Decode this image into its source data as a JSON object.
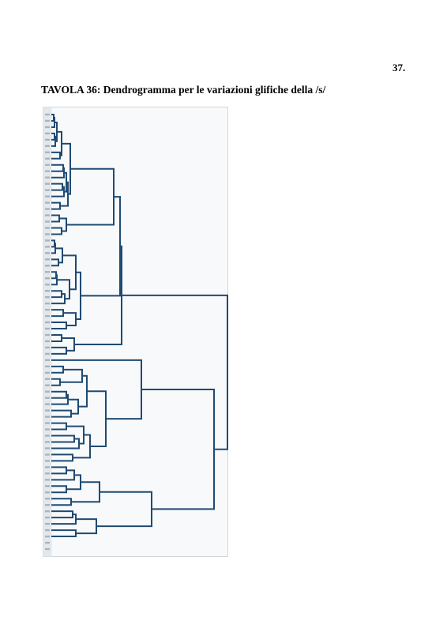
{
  "page_number": "37.",
  "title": "TAVOLA 36: Dendrogramma per le variazioni glifiche della /s/",
  "colors": {
    "line": "#1f4a72",
    "panel_bg": "#f8f9fa",
    "panel_border": "#cfd6dc",
    "label_strip": "#e3e8ec"
  },
  "dendrogram": {
    "leaf_count": 70
  }
}
